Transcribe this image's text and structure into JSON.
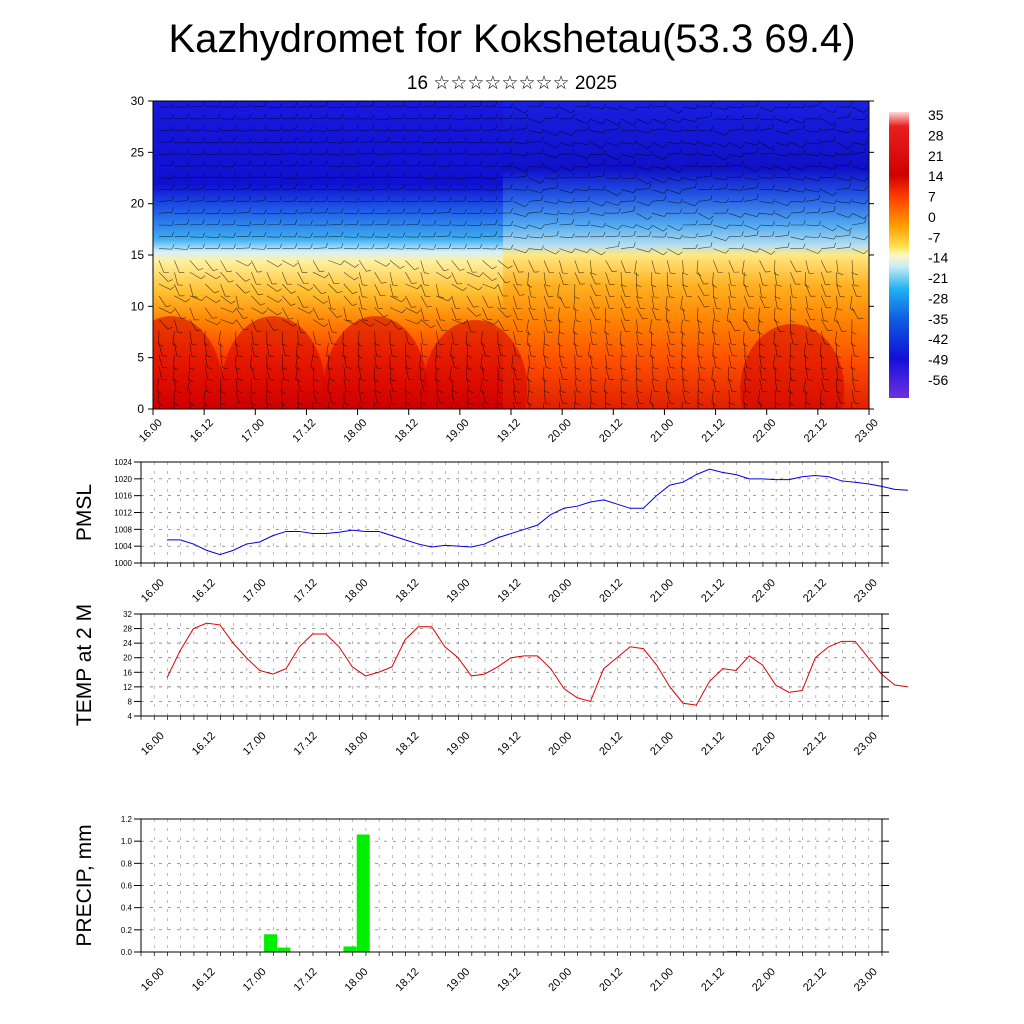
{
  "header": {
    "title": "Kazhydromet for Kokshetau(53.3 69.4)",
    "subtitle": "16 ☆☆☆☆☆☆☆☆ 2025"
  },
  "colors": {
    "pmsl_line": "#0000dd",
    "temp_line": "#dd0000",
    "precip_bar": "#00ee00",
    "axis": "#000000"
  },
  "time_tick_labels": [
    "16.00",
    "16.12",
    "17.00",
    "17.12",
    "18.00",
    "18.12",
    "19.00",
    "19.12",
    "20.00",
    "20.12",
    "21.00",
    "21.12",
    "22.00",
    "22.12",
    "23.00"
  ],
  "chart_data": [
    {
      "type": "heatmap",
      "name": "cross-section",
      "x": "time_tick_labels",
      "ylim": [
        0,
        30
      ],
      "yticks": [
        "0",
        "5",
        "10",
        "15",
        "20",
        "25",
        "30"
      ],
      "colorbar": {
        "labels": [
          "35",
          "28",
          "21",
          "14",
          "7",
          "0",
          "-7",
          "-14",
          "-21",
          "-28",
          "-35",
          "-42",
          "-49",
          "-56"
        ],
        "range": [
          -63,
          42
        ]
      },
      "surface_temp_trend_note": "",
      "wind_barbs": true
    },
    {
      "type": "line",
      "ylabel": "PMSL",
      "ylim": [
        1000,
        1024
      ],
      "yticks": [
        "1000",
        "1004",
        "1008",
        "1012",
        "1016",
        "1020",
        "1024"
      ],
      "x_hours": [
        0,
        3,
        6,
        9,
        12,
        15,
        18,
        21,
        24,
        27,
        30,
        33,
        36,
        39,
        42,
        45,
        48,
        51,
        54,
        57,
        60,
        63,
        66,
        69,
        72,
        75,
        78,
        81,
        84,
        87,
        90,
        93,
        96,
        99,
        102,
        105,
        108,
        111,
        114,
        117,
        120,
        123,
        126,
        129,
        132,
        135,
        138,
        141,
        144,
        147,
        150,
        153,
        156,
        159,
        162,
        165,
        168
      ],
      "values": [
        1005.5,
        1005.5,
        1004.5,
        1003,
        1002,
        1003,
        1004.5,
        1005,
        1006.5,
        1007.5,
        1007.5,
        1007,
        1007,
        1007.3,
        1007.8,
        1007.5,
        1007.5,
        1006.5,
        1005.5,
        1004.5,
        1003.8,
        1004.2,
        1004,
        1003.8,
        1004.5,
        1006,
        1007,
        1008,
        1009,
        1011.5,
        1013,
        1013.5,
        1014.5,
        1015,
        1014,
        1013,
        1013,
        1016,
        1018.5,
        1019.2,
        1021,
        1022.3,
        1021.5,
        1021,
        1020,
        1020,
        1019.8,
        1019.8,
        1020.5,
        1020.8,
        1020.5,
        1019.5,
        1019.2,
        1018.8,
        1018.2,
        1017.5,
        1017.3
      ]
    },
    {
      "type": "line",
      "ylabel": "TEMP at 2 M",
      "ylim": [
        4,
        32
      ],
      "yticks": [
        "4",
        "8",
        "12",
        "16",
        "20",
        "24",
        "28",
        "32"
      ],
      "x_hours": [
        0,
        3,
        6,
        9,
        12,
        15,
        18,
        21,
        24,
        27,
        30,
        33,
        36,
        39,
        42,
        45,
        48,
        51,
        54,
        57,
        60,
        63,
        66,
        69,
        72,
        75,
        78,
        81,
        84,
        87,
        90,
        93,
        96,
        99,
        102,
        105,
        108,
        111,
        114,
        117,
        120,
        123,
        126,
        129,
        132,
        135,
        138,
        141,
        144,
        147,
        150,
        153,
        156,
        159,
        162,
        165,
        168
      ],
      "values": [
        14.5,
        22,
        28,
        29.5,
        29,
        24,
        20,
        16.5,
        15.5,
        17,
        23,
        26.5,
        26.5,
        23,
        17.5,
        15,
        16,
        17.5,
        25,
        28.5,
        28.5,
        23,
        20,
        15,
        15.5,
        17.5,
        20,
        20.5,
        20.5,
        17,
        11.5,
        9,
        8,
        17,
        20,
        23,
        22.5,
        18,
        12,
        7.5,
        7,
        13.5,
        17,
        16.5,
        20.5,
        18,
        12.5,
        10.5,
        11,
        20,
        23,
        24.5,
        24.5,
        20,
        15.5,
        12.5,
        12
      ]
    },
    {
      "type": "bar",
      "ylabel": "PRECIP, mm",
      "ylim": [
        0,
        1.2
      ],
      "yticks": [
        "0.0",
        "0.2",
        "0.4",
        "0.6",
        "0.8",
        "1.0",
        "1.2"
      ],
      "bars": [
        {
          "x_hours": 27,
          "value": 0.16
        },
        {
          "x_hours": 30,
          "value": 0.04
        },
        {
          "x_hours": 45,
          "value": 0.05
        },
        {
          "x_hours": 48,
          "value": 1.06
        },
        {
          "x_hours": 132,
          "value": 0.01
        }
      ]
    }
  ]
}
